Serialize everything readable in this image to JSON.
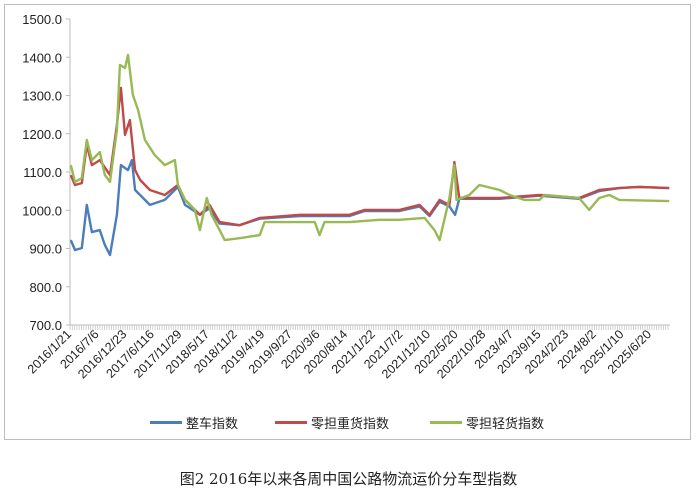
{
  "chart_data": {
    "type": "line",
    "title": "",
    "caption": "图2 2016年以来各周中国公路物流运价分车型指数",
    "xlabel": "",
    "ylabel": "",
    "ylim": [
      700,
      1500
    ],
    "yticks": [
      "700.0",
      "800.0",
      "900.0",
      "1000.0",
      "1100.0",
      "1200.0",
      "1300.0",
      "1400.0",
      "1500.0"
    ],
    "xtick_labels": [
      "2016/1/21",
      "2016/7/6",
      "2016/12/23",
      "2017/6/116",
      "2017/11/29",
      "2018/5/17",
      "2018/11/2",
      "2019/4/19",
      "2019/9/27",
      "2020/3/6",
      "2020/8/14",
      "2021/1/22",
      "2021/7/2",
      "2021/12/10",
      "2022/5/20",
      "2022/10/28",
      "2023/4/7",
      "2023/9/15",
      "2024/2/23",
      "2024/8/2",
      "2025/1/10",
      "2025/6/20"
    ],
    "grid": false,
    "legend_position": "bottom",
    "series": [
      {
        "name": "整车指数",
        "color": "#4a7ebb",
        "points": [
          [
            "2016-01-14",
            922
          ],
          [
            "2016-02-08",
            896
          ],
          [
            "2016-03-19",
            901
          ],
          [
            "2016-04-18",
            1014
          ],
          [
            "2016-05-18",
            943
          ],
          [
            "2016-07-04",
            948
          ],
          [
            "2016-08-03",
            909
          ],
          [
            "2016-09-02",
            883
          ],
          [
            "2016-10-13",
            988
          ],
          [
            "2016-11-06",
            1118
          ],
          [
            "2016-12-18",
            1105
          ],
          [
            "2017-01-10",
            1131
          ],
          [
            "2017-01-29",
            1053
          ],
          [
            "2017-04-27",
            1014
          ],
          [
            "2017-07-24",
            1027
          ],
          [
            "2017-10-10",
            1061
          ],
          [
            "2017-11-21",
            1014
          ],
          [
            "2018-02-17",
            988
          ],
          [
            "2018-04-15",
            1005
          ],
          [
            "2018-06-14",
            965
          ],
          [
            "2018-10-10",
            961
          ],
          [
            "2019-02-07",
            978
          ],
          [
            "2019-10-03",
            985
          ],
          [
            "2020-07-23",
            985
          ],
          [
            "2020-10-21",
            998
          ],
          [
            "2021-05-15",
            998
          ],
          [
            "2021-09-11",
            1010
          ],
          [
            "2021-11-09",
            985
          ],
          [
            "2022-01-08",
            1022
          ],
          [
            "2022-03-07",
            1010
          ],
          [
            "2022-04-10",
            988
          ],
          [
            "2022-05-05",
            1030
          ],
          [
            "2022-12-30",
            1030
          ],
          [
            "2023-08-23",
            1038
          ],
          [
            "2024-04-14",
            1030
          ],
          [
            "2024-08-11",
            1050
          ],
          [
            "2024-12-08",
            1058
          ],
          [
            "2025-04-06",
            1061
          ],
          [
            "2025-09-30",
            1058
          ]
        ]
      },
      {
        "name": "零担重货指数",
        "color": "#be4b48",
        "points": [
          [
            "2016-01-14",
            1092
          ],
          [
            "2016-02-08",
            1066
          ],
          [
            "2016-03-19",
            1071
          ],
          [
            "2016-04-18",
            1171
          ],
          [
            "2016-05-18",
            1118
          ],
          [
            "2016-07-04",
            1131
          ],
          [
            "2016-09-02",
            1092
          ],
          [
            "2016-10-13",
            1223
          ],
          [
            "2016-11-06",
            1320
          ],
          [
            "2016-11-30",
            1197
          ],
          [
            "2016-12-29",
            1236
          ],
          [
            "2017-01-29",
            1105
          ],
          [
            "2017-02-28",
            1079
          ],
          [
            "2017-04-27",
            1053
          ],
          [
            "2017-07-24",
            1040
          ],
          [
            "2017-10-10",
            1066
          ],
          [
            "2017-11-21",
            1027
          ],
          [
            "2018-02-17",
            988
          ],
          [
            "2018-04-15",
            1014
          ],
          [
            "2018-06-14",
            969
          ],
          [
            "2018-10-10",
            961
          ],
          [
            "2019-02-07",
            980
          ],
          [
            "2019-10-03",
            988
          ],
          [
            "2020-07-23",
            988
          ],
          [
            "2020-10-21",
            1001
          ],
          [
            "2021-05-15",
            1001
          ],
          [
            "2021-09-11",
            1014
          ],
          [
            "2021-11-09",
            988
          ],
          [
            "2022-01-08",
            1027
          ],
          [
            "2022-03-07",
            1014
          ],
          [
            "2022-04-06",
            1126
          ],
          [
            "2022-05-05",
            1032
          ],
          [
            "2022-12-30",
            1032
          ],
          [
            "2023-08-23",
            1040
          ],
          [
            "2024-04-14",
            1032
          ],
          [
            "2024-08-11",
            1053
          ],
          [
            "2024-12-08",
            1058
          ],
          [
            "2025-04-06",
            1061
          ],
          [
            "2025-09-30",
            1058
          ]
        ]
      },
      {
        "name": "零担轻货指数",
        "color": "#98b954",
        "points": [
          [
            "2016-01-14",
            1118
          ],
          [
            "2016-02-08",
            1074
          ],
          [
            "2016-03-19",
            1084
          ],
          [
            "2016-04-18",
            1184
          ],
          [
            "2016-05-18",
            1131
          ],
          [
            "2016-07-04",
            1152
          ],
          [
            "2016-08-03",
            1092
          ],
          [
            "2016-09-02",
            1074
          ],
          [
            "2016-10-13",
            1210
          ],
          [
            "2016-10-31",
            1380
          ],
          [
            "2016-11-30",
            1372
          ],
          [
            "2016-12-18",
            1406
          ],
          [
            "2017-01-16",
            1301
          ],
          [
            "2017-02-16",
            1262
          ],
          [
            "2017-03-28",
            1184
          ],
          [
            "2017-05-26",
            1144
          ],
          [
            "2017-07-24",
            1118
          ],
          [
            "2017-09-22",
            1131
          ],
          [
            "2017-10-10",
            1066
          ],
          [
            "2017-11-21",
            1027
          ],
          [
            "2018-01-18",
            1001
          ],
          [
            "2018-02-17",
            948
          ],
          [
            "2018-03-30",
            1032
          ],
          [
            "2018-04-27",
            988
          ],
          [
            "2018-06-14",
            948
          ],
          [
            "2018-07-14",
            922
          ],
          [
            "2018-10-10",
            927
          ],
          [
            "2019-02-07",
            935
          ],
          [
            "2019-03-07",
            969
          ],
          [
            "2019-12-30",
            969
          ],
          [
            "2020-01-27",
            935
          ],
          [
            "2020-02-26",
            969
          ],
          [
            "2020-07-23",
            969
          ],
          [
            "2021-01-17",
            975
          ],
          [
            "2021-05-15",
            975
          ],
          [
            "2021-10-11",
            980
          ],
          [
            "2021-12-09",
            948
          ],
          [
            "2022-01-08",
            922
          ],
          [
            "2022-03-07",
            1032
          ],
          [
            "2022-04-06",
            1118
          ],
          [
            "2022-04-18",
            1027
          ],
          [
            "2022-07-03",
            1040
          ],
          [
            "2022-09-01",
            1066
          ],
          [
            "2022-12-30",
            1053
          ],
          [
            "2023-02-27",
            1040
          ],
          [
            "2023-05-25",
            1027
          ],
          [
            "2023-08-23",
            1027
          ],
          [
            "2023-09-21",
            1040
          ],
          [
            "2024-04-14",
            1032
          ],
          [
            "2024-06-13",
            1001
          ],
          [
            "2024-08-11",
            1032
          ],
          [
            "2024-10-10",
            1040
          ],
          [
            "2024-12-08",
            1027
          ],
          [
            "2025-09-30",
            1024
          ]
        ]
      }
    ]
  }
}
